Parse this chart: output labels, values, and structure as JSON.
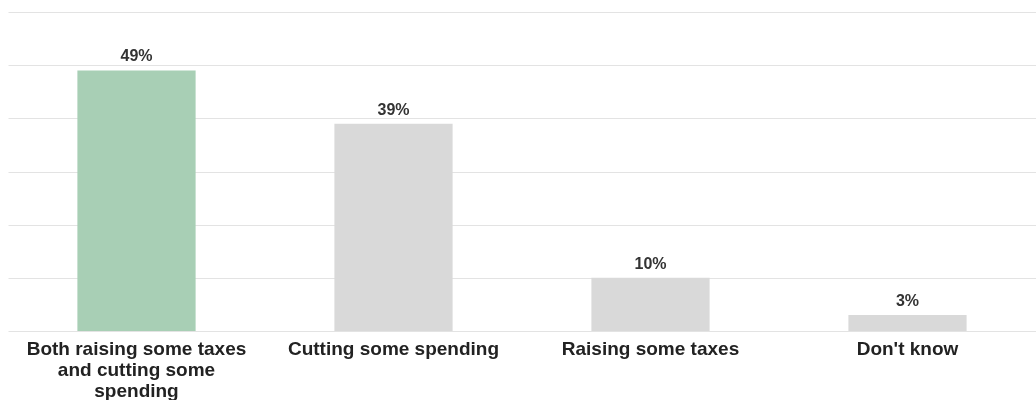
{
  "chart_data": {
    "type": "bar",
    "categories": [
      "Both raising some taxes and cutting some spending",
      "Cutting some spending",
      "Raising some taxes",
      "Don't know"
    ],
    "values": [
      49,
      39,
      10,
      3
    ],
    "colors": [
      "#a8cfb5",
      "#d9d9d9",
      "#d9d9d9",
      "#d9d9d9"
    ],
    "value_labels": [
      "49%",
      "39%",
      "10%",
      "3%"
    ],
    "ylim": [
      0,
      60
    ],
    "yticks": [
      {
        "value": 0,
        "label": null
      },
      {
        "value": 10,
        "label": null
      },
      {
        "value": 20,
        "label": null
      },
      {
        "value": 30,
        "label": null
      },
      {
        "value": 40,
        "label": null
      },
      {
        "value": 50,
        "label": null
      },
      {
        "value": 60,
        "label": null
      }
    ],
    "grid": "y",
    "tick_labels": "x"
  }
}
